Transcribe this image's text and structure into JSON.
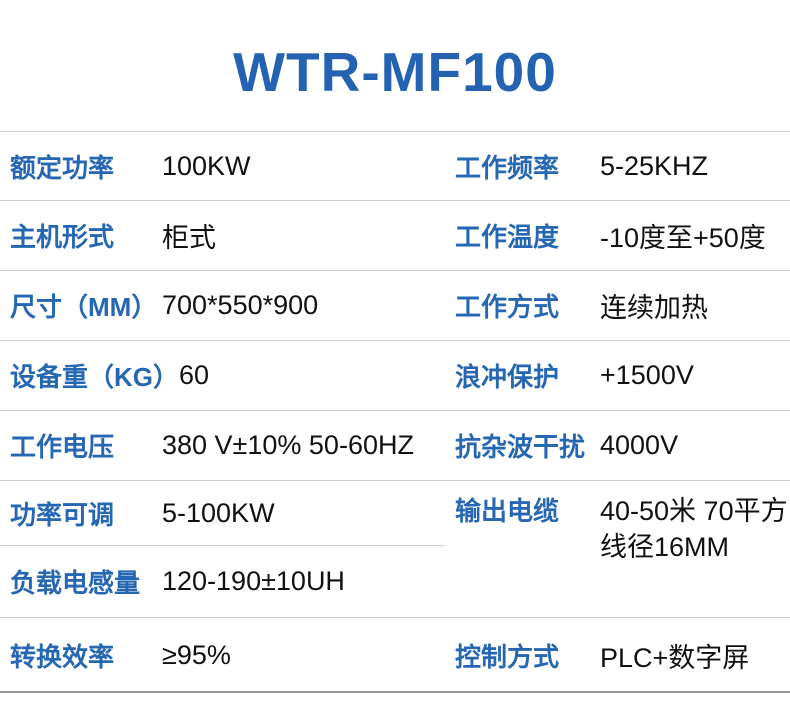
{
  "title": "WTR-MF100",
  "theme": {
    "title_color": "#2363b2",
    "label_color": "#2667b3",
    "value_color": "#111111",
    "divider_color": "#cfcfcf",
    "bottom_border_color": "#96969c"
  },
  "specs": {
    "left": [
      {
        "label": "额定功率",
        "value": "100KW"
      },
      {
        "label": "主机形式",
        "value": "柜式"
      },
      {
        "label": "尺寸（MM）",
        "value": "700*550*900"
      },
      {
        "label": "设备重（KG）",
        "value": "60"
      },
      {
        "label": "工作电压",
        "value": "380 V±10% 50-60HZ"
      },
      {
        "label": "功率可调",
        "value": "5-100KW"
      },
      {
        "label": "负载电感量",
        "value": "120-190±10UH"
      },
      {
        "label": "转换效率",
        "value": "≥95%"
      }
    ],
    "right": [
      {
        "label": "工作频率",
        "value": "5-25KHZ"
      },
      {
        "label": "工作温度",
        "value": "-10度至+50度"
      },
      {
        "label": "工作方式",
        "value": "连续加热"
      },
      {
        "label": "浪冲保护",
        "value": "+1500V"
      },
      {
        "label": "抗杂波干扰",
        "value": "4000V"
      },
      {
        "label": "输出电缆",
        "value": "40-50米 70平方\n线径16MM"
      },
      {
        "label": "控制方式",
        "value": "PLC+数字屏"
      }
    ]
  }
}
